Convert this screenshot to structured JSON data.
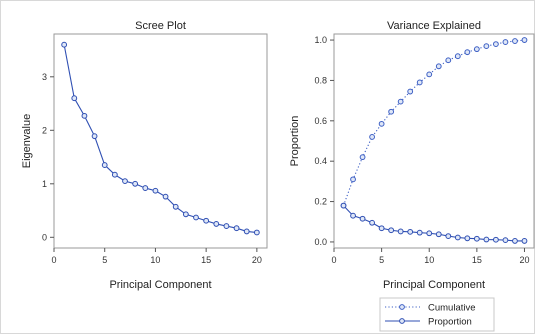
{
  "chart_data": [
    {
      "type": "line",
      "title": "Scree Plot",
      "xlabel": "Principal Component",
      "ylabel": "Eigenvalue",
      "xlim": [
        0,
        21
      ],
      "ylim": [
        -0.2,
        3.8
      ],
      "xticks": [
        0,
        5,
        10,
        15,
        20
      ],
      "yticks": [
        0,
        1,
        2,
        3
      ],
      "ytick_labels": [
        "0",
        "1",
        "2",
        "3"
      ],
      "grid": false,
      "x": [
        1,
        2,
        3,
        4,
        5,
        6,
        7,
        8,
        9,
        10,
        11,
        12,
        13,
        14,
        15,
        16,
        17,
        18,
        19,
        20
      ],
      "series": [
        {
          "values": [
            3.6,
            2.6,
            2.27,
            1.89,
            1.35,
            1.17,
            1.05,
            1.0,
            0.92,
            0.87,
            0.76,
            0.57,
            0.43,
            0.37,
            0.31,
            0.25,
            0.21,
            0.17,
            0.11,
            0.09
          ],
          "color": "#2f4fb3",
          "line_style": "solid",
          "marker": "circle"
        }
      ]
    },
    {
      "type": "line",
      "title": "Variance Explained",
      "xlabel": "Principal Component",
      "ylabel": "Proportion",
      "xlim": [
        0,
        21
      ],
      "ylim": [
        -0.03,
        1.03
      ],
      "xticks": [
        0,
        5,
        10,
        15,
        20
      ],
      "yticks": [
        0,
        0.2,
        0.4,
        0.6,
        0.8,
        1.0
      ],
      "ytick_labels": [
        "0.0",
        "0.2",
        "0.4",
        "0.6",
        "0.8",
        "1.0"
      ],
      "grid": false,
      "legend_position": "bottom-right",
      "x": [
        1,
        2,
        3,
        4,
        5,
        6,
        7,
        8,
        9,
        10,
        11,
        12,
        13,
        14,
        15,
        16,
        17,
        18,
        19,
        20
      ],
      "series": [
        {
          "name": "Cumulative",
          "values": [
            0.18,
            0.31,
            0.42,
            0.52,
            0.585,
            0.645,
            0.695,
            0.745,
            0.79,
            0.83,
            0.87,
            0.9,
            0.92,
            0.94,
            0.955,
            0.97,
            0.98,
            0.99,
            0.995,
            1.0
          ],
          "color": "#3d5fc4",
          "line_style": "dotted",
          "marker": "circle"
        },
        {
          "name": "Proportion",
          "values": [
            0.18,
            0.13,
            0.115,
            0.095,
            0.068,
            0.058,
            0.052,
            0.05,
            0.046,
            0.043,
            0.038,
            0.029,
            0.022,
            0.018,
            0.016,
            0.012,
            0.011,
            0.009,
            0.005,
            0.005
          ],
          "color": "#2f4fb3",
          "line_style": "solid",
          "marker": "circle"
        }
      ]
    }
  ]
}
